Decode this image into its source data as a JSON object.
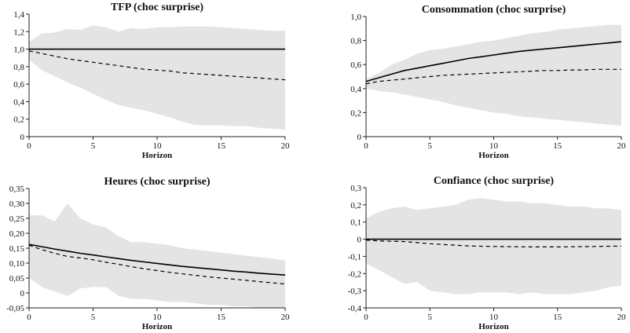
{
  "chart_data": [
    {
      "type": "line",
      "title": "TFP (choc surprise)",
      "xlabel": "Horizon",
      "ylabel": "",
      "xlim": [
        0,
        20
      ],
      "ylim": [
        0,
        1.4
      ],
      "x_ticks": [
        0,
        5,
        10,
        15,
        20
      ],
      "x_tick_labels": [
        "0",
        "5",
        "10",
        "15",
        "20"
      ],
      "y_ticks": [
        0,
        0.2,
        0.4,
        0.6,
        0.8,
        1.0,
        1.2,
        1.4
      ],
      "y_tick_labels": [
        "0",
        "0,2",
        "0,4",
        "0,6",
        "0,8",
        "1,0",
        "1,2",
        "1,4"
      ],
      "grid": false,
      "x": [
        0,
        1,
        2,
        3,
        4,
        5,
        6,
        7,
        8,
        9,
        10,
        11,
        12,
        13,
        14,
        15,
        16,
        17,
        18,
        19,
        20
      ],
      "series": [
        {
          "style": "solid",
          "values": [
            1.0,
            1.0,
            1.0,
            1.0,
            1.0,
            1.0,
            1.0,
            1.0,
            1.0,
            1.0,
            1.0,
            1.0,
            1.0,
            1.0,
            1.0,
            1.0,
            1.0,
            1.0,
            1.0,
            1.0,
            1.0
          ]
        },
        {
          "style": "dashed",
          "values": [
            0.98,
            0.95,
            0.92,
            0.89,
            0.87,
            0.85,
            0.83,
            0.81,
            0.79,
            0.77,
            0.76,
            0.75,
            0.73,
            0.72,
            0.71,
            0.7,
            0.69,
            0.68,
            0.67,
            0.66,
            0.65
          ]
        }
      ],
      "band": {
        "upper": [
          1.08,
          1.18,
          1.19,
          1.23,
          1.22,
          1.27,
          1.25,
          1.2,
          1.24,
          1.23,
          1.25,
          1.25,
          1.26,
          1.26,
          1.26,
          1.25,
          1.24,
          1.23,
          1.22,
          1.21,
          1.21
        ],
        "lower": [
          0.88,
          0.76,
          0.69,
          0.62,
          0.56,
          0.49,
          0.42,
          0.36,
          0.33,
          0.3,
          0.26,
          0.22,
          0.17,
          0.13,
          0.13,
          0.13,
          0.12,
          0.12,
          0.1,
          0.09,
          0.08
        ]
      }
    },
    {
      "type": "line",
      "title": "Consommation (choc surprise)",
      "xlabel": "Horizon",
      "ylabel": "",
      "xlim": [
        0,
        20
      ],
      "ylim": [
        0,
        1.0
      ],
      "x_ticks": [
        0,
        5,
        10,
        15,
        20
      ],
      "x_tick_labels": [
        "0",
        "5",
        "10",
        "15",
        "20"
      ],
      "y_ticks": [
        0,
        0.2,
        0.4,
        0.6,
        0.8,
        1.0
      ],
      "y_tick_labels": [
        "0",
        "0,2",
        "0,4",
        "0,6",
        "0,8",
        "1,0"
      ],
      "grid": false,
      "x": [
        0,
        1,
        2,
        3,
        4,
        5,
        6,
        7,
        8,
        9,
        10,
        11,
        12,
        13,
        14,
        15,
        16,
        17,
        18,
        19,
        20
      ],
      "series": [
        {
          "style": "solid",
          "values": [
            0.46,
            0.49,
            0.52,
            0.55,
            0.57,
            0.59,
            0.61,
            0.63,
            0.65,
            0.665,
            0.68,
            0.695,
            0.71,
            0.72,
            0.73,
            0.74,
            0.75,
            0.76,
            0.77,
            0.78,
            0.79
          ]
        },
        {
          "style": "dashed",
          "values": [
            0.44,
            0.46,
            0.47,
            0.48,
            0.49,
            0.5,
            0.51,
            0.515,
            0.52,
            0.525,
            0.53,
            0.535,
            0.54,
            0.545,
            0.55,
            0.55,
            0.555,
            0.555,
            0.56,
            0.56,
            0.56
          ]
        }
      ],
      "band": {
        "upper": [
          0.48,
          0.53,
          0.6,
          0.64,
          0.69,
          0.72,
          0.73,
          0.75,
          0.77,
          0.79,
          0.8,
          0.82,
          0.84,
          0.86,
          0.87,
          0.89,
          0.9,
          0.91,
          0.92,
          0.93,
          0.93
        ],
        "lower": [
          0.4,
          0.38,
          0.37,
          0.35,
          0.33,
          0.31,
          0.29,
          0.26,
          0.24,
          0.22,
          0.2,
          0.19,
          0.17,
          0.16,
          0.15,
          0.14,
          0.13,
          0.12,
          0.11,
          0.1,
          0.09
        ]
      }
    },
    {
      "type": "line",
      "title": "Heures (choc surprise)",
      "xlabel": "Horizon",
      "ylabel": "",
      "xlim": [
        0,
        20
      ],
      "ylim": [
        -0.05,
        0.35
      ],
      "x_ticks": [
        0,
        5,
        10,
        15,
        20
      ],
      "x_tick_labels": [
        "0",
        "5",
        "10",
        "15",
        "20"
      ],
      "y_ticks": [
        -0.05,
        0,
        0.05,
        0.1,
        0.15,
        0.2,
        0.25,
        0.3,
        0.35
      ],
      "y_tick_labels": [
        "-0,05",
        "0",
        "0,05",
        "0,10",
        "0,15",
        "0,20",
        "0,25",
        "0,30",
        "0,35"
      ],
      "grid": false,
      "x": [
        0,
        1,
        2,
        3,
        4,
        5,
        6,
        7,
        8,
        9,
        10,
        11,
        12,
        13,
        14,
        15,
        16,
        17,
        18,
        19,
        20
      ],
      "series": [
        {
          "style": "solid",
          "values": [
            0.163,
            0.155,
            0.147,
            0.14,
            0.133,
            0.127,
            0.121,
            0.115,
            0.109,
            0.104,
            0.099,
            0.094,
            0.089,
            0.085,
            0.081,
            0.077,
            0.073,
            0.07,
            0.066,
            0.063,
            0.06
          ]
        },
        {
          "style": "dashed",
          "values": [
            0.16,
            0.145,
            0.133,
            0.122,
            0.117,
            0.111,
            0.103,
            0.096,
            0.088,
            0.081,
            0.075,
            0.069,
            0.064,
            0.059,
            0.054,
            0.05,
            0.046,
            0.042,
            0.038,
            0.034,
            0.03
          ]
        }
      ],
      "band": {
        "upper": [
          0.26,
          0.26,
          0.24,
          0.3,
          0.25,
          0.23,
          0.22,
          0.19,
          0.17,
          0.17,
          0.165,
          0.16,
          0.15,
          0.145,
          0.14,
          0.135,
          0.13,
          0.125,
          0.12,
          0.115,
          0.11
        ],
        "lower": [
          0.05,
          0.02,
          0.005,
          -0.01,
          0.015,
          0.02,
          0.02,
          -0.01,
          -0.02,
          -0.02,
          -0.025,
          -0.03,
          -0.03,
          -0.035,
          -0.04,
          -0.04,
          -0.045,
          -0.045,
          -0.05,
          -0.05,
          -0.05
        ]
      }
    },
    {
      "type": "line",
      "title": "Confiance (choc surprise)",
      "xlabel": "Horizon",
      "ylabel": "",
      "xlim": [
        0,
        20
      ],
      "ylim": [
        -0.4,
        0.3
      ],
      "x_ticks": [
        0,
        5,
        10,
        15,
        20
      ],
      "x_tick_labels": [
        "0",
        "5",
        "10",
        "15",
        "20"
      ],
      "y_ticks": [
        -0.4,
        -0.3,
        -0.2,
        -0.1,
        0,
        0.1,
        0.2,
        0.3
      ],
      "y_tick_labels": [
        "-0,4",
        "-0,3",
        "-0,2",
        "-0,1",
        "0",
        "0,1",
        "0,2",
        "0,3"
      ],
      "grid": false,
      "x": [
        0,
        1,
        2,
        3,
        4,
        5,
        6,
        7,
        8,
        9,
        10,
        11,
        12,
        13,
        14,
        15,
        16,
        17,
        18,
        19,
        20
      ],
      "series": [
        {
          "style": "solid",
          "values": [
            0,
            0,
            0,
            0,
            0,
            0,
            0,
            0,
            0,
            0,
            0,
            0,
            0,
            0,
            0,
            0,
            0,
            0,
            0,
            0,
            0
          ]
        },
        {
          "style": "dashed",
          "values": [
            -0.005,
            -0.01,
            -0.012,
            -0.014,
            -0.02,
            -0.026,
            -0.031,
            -0.035,
            -0.039,
            -0.041,
            -0.042,
            -0.043,
            -0.044,
            -0.045,
            -0.045,
            -0.045,
            -0.044,
            -0.043,
            -0.042,
            -0.041,
            -0.04
          ]
        }
      ],
      "band": {
        "upper": [
          0.12,
          0.16,
          0.18,
          0.19,
          0.17,
          0.18,
          0.19,
          0.2,
          0.23,
          0.24,
          0.23,
          0.22,
          0.22,
          0.21,
          0.21,
          0.2,
          0.19,
          0.19,
          0.18,
          0.18,
          0.17
        ],
        "lower": [
          -0.14,
          -0.18,
          -0.22,
          -0.26,
          -0.25,
          -0.3,
          -0.31,
          -0.32,
          -0.32,
          -0.31,
          -0.31,
          -0.31,
          -0.32,
          -0.31,
          -0.32,
          -0.32,
          -0.32,
          -0.31,
          -0.3,
          -0.28,
          -0.27
        ]
      }
    }
  ]
}
